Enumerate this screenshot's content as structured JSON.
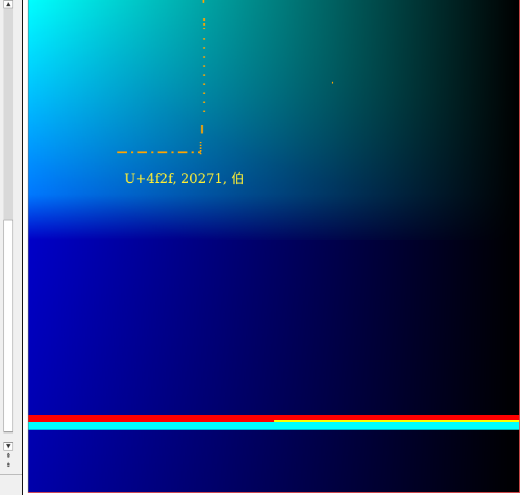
{
  "left_panel": {
    "scroll_up_glyph": "▲",
    "scroll_down_glyph": "▼",
    "nav_up_glyph": "⇞",
    "nav_down_glyph": "⇟"
  },
  "canvas": {
    "glyph_label": "U+4f2f, 20271, 伯",
    "colors": {
      "crosshair": "#ffa500",
      "label": "#ffee33",
      "red_bar": "#ff0000",
      "yellow_bar": "#ffff00",
      "cyan_bar": "#00ffff"
    }
  }
}
